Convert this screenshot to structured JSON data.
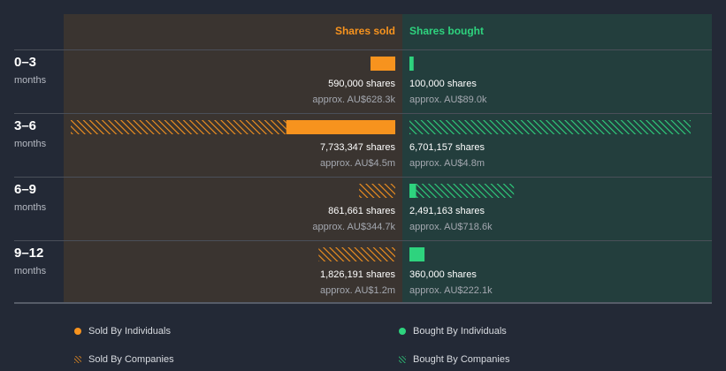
{
  "colors": {
    "background": "#232936",
    "sold_panel": "#3a3430",
    "bought_panel": "#233e3d",
    "sold": "#f7931e",
    "bought": "#2ed37e"
  },
  "headers": {
    "sold": "Shares sold",
    "bought": "Shares bought"
  },
  "legend": {
    "sold_individuals": "Sold By Individuals",
    "bought_individuals": "Bought By Individuals",
    "sold_companies": "Sold By Companies",
    "bought_companies": "Bought By Companies"
  },
  "chart_data": {
    "type": "bar",
    "layout": "diverging-horizontal",
    "categories": [
      {
        "title": "0–3",
        "sub": "months"
      },
      {
        "title": "3–6",
        "sub": "months"
      },
      {
        "title": "6–9",
        "sub": "months"
      },
      {
        "title": "9–12",
        "sub": "months"
      }
    ],
    "max_shares": 7733347,
    "sold": [
      {
        "individuals": 590000,
        "companies": 0,
        "shares_label": "590,000 shares",
        "value_label": "approx. AU$628.3k"
      },
      {
        "individuals": 2600000,
        "companies": 5133347,
        "shares_label": "7,733,347 shares",
        "value_label": "approx. AU$4.5m"
      },
      {
        "individuals": 0,
        "companies": 861661,
        "shares_label": "861,661 shares",
        "value_label": "approx. AU$344.7k"
      },
      {
        "individuals": 0,
        "companies": 1826191,
        "shares_label": "1,826,191 shares",
        "value_label": "approx. AU$1.2m"
      }
    ],
    "bought": [
      {
        "individuals": 100000,
        "companies": 0,
        "shares_label": "100,000 shares",
        "value_label": "approx. AU$89.0k"
      },
      {
        "individuals": 0,
        "companies": 6701157,
        "shares_label": "6,701,157 shares",
        "value_label": "approx. AU$4.8m"
      },
      {
        "individuals": 160000,
        "companies": 2331163,
        "shares_label": "2,491,163 shares",
        "value_label": "approx. AU$718.6k"
      },
      {
        "individuals": 360000,
        "companies": 0,
        "shares_label": "360,000 shares",
        "value_label": "approx. AU$222.1k"
      }
    ]
  }
}
